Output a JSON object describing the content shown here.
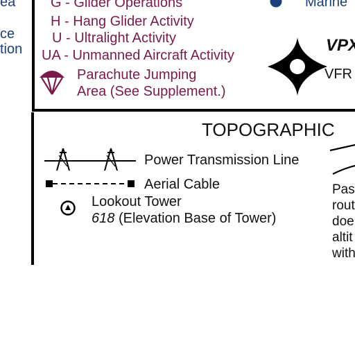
{
  "left_fragment": {
    "line1": "ea",
    "line2": "ce",
    "line3": "tion"
  },
  "activity_legend": {
    "glider": {
      "code": "G",
      "dash": "-",
      "label": "Glider Operations"
    },
    "hang_glider": {
      "code": "H",
      "dash": "-",
      "label": "Hang Glider Activity"
    },
    "ultralight": {
      "code": "U",
      "dash": "-",
      "label": "Ultralight Activity"
    },
    "unmanned": {
      "code": "UA",
      "dash": "-",
      "label": "Unmanned Aircraft Activity"
    },
    "parachute": {
      "line1": "Parachute Jumping",
      "line2": "Area (See Supplement.)"
    }
  },
  "right_top": {
    "marine_label": "Marine",
    "vpx_label": "VPX",
    "vfr_label": "VFR"
  },
  "topographic": {
    "heading": "TOPOGRAPHIC",
    "power_line_label": "Power Transmission Line",
    "aerial_cable_label": "Aerial Cable",
    "lookout_tower_label": "Lookout Tower",
    "tower_elevation_value": "618",
    "tower_elevation_label": "(Elevation Base of Tower)",
    "right_text": [
      "Pas",
      "rout",
      "doe",
      "altit",
      "with"
    ]
  },
  "colors": {
    "maroon": "#7a1a4a",
    "navy": "#1b3f7a",
    "rule": "#000000"
  },
  "icons": [
    "parachute-icon",
    "vfr-waypoint-star-icon",
    "marine-dot-icon",
    "power-tower-icon",
    "cable-end-icon",
    "lookout-tower-icon"
  ]
}
